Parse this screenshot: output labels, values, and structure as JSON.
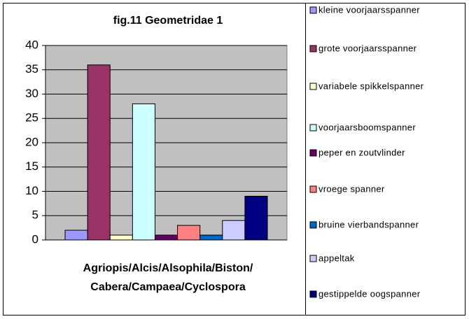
{
  "chart_data": {
    "type": "bar",
    "title": "fig.11  Geometridae 1",
    "xlabel": [
      "Agriopis/Alcis/Alsophila/Biston/",
      "Cabera/Campaea/Cyclospora"
    ],
    "series": [
      {
        "name": "kleine voorjaarsspanner",
        "color": "#9999ff",
        "values": [
          2
        ]
      },
      {
        "name": "grote voorjaarsspanner",
        "color": "#993366",
        "values": [
          36
        ]
      },
      {
        "name": "variabele spikkelspanner",
        "color": "#ffffcc",
        "values": [
          1
        ]
      },
      {
        "name": "voorjaarsboomspanner",
        "color": "#ccffff",
        "values": [
          28
        ]
      },
      {
        "name": "peper en zoutvlinder",
        "color": "#660066",
        "values": [
          1
        ]
      },
      {
        "name": "vroege spanner",
        "color": "#ff8080",
        "values": [
          3
        ]
      },
      {
        "name": "bruine vierbandspanner",
        "color": "#0066cc",
        "values": [
          1
        ]
      },
      {
        "name": "appeltak",
        "color": "#ccccff",
        "values": [
          4
        ]
      },
      {
        "name": "gestippelde oogspanner",
        "color": "#000080",
        "values": [
          9
        ]
      }
    ],
    "ylim": [
      0,
      40
    ],
    "yticks": [
      0,
      5,
      10,
      15,
      20,
      25,
      30,
      35,
      40
    ],
    "grid": true,
    "legend": "right"
  }
}
